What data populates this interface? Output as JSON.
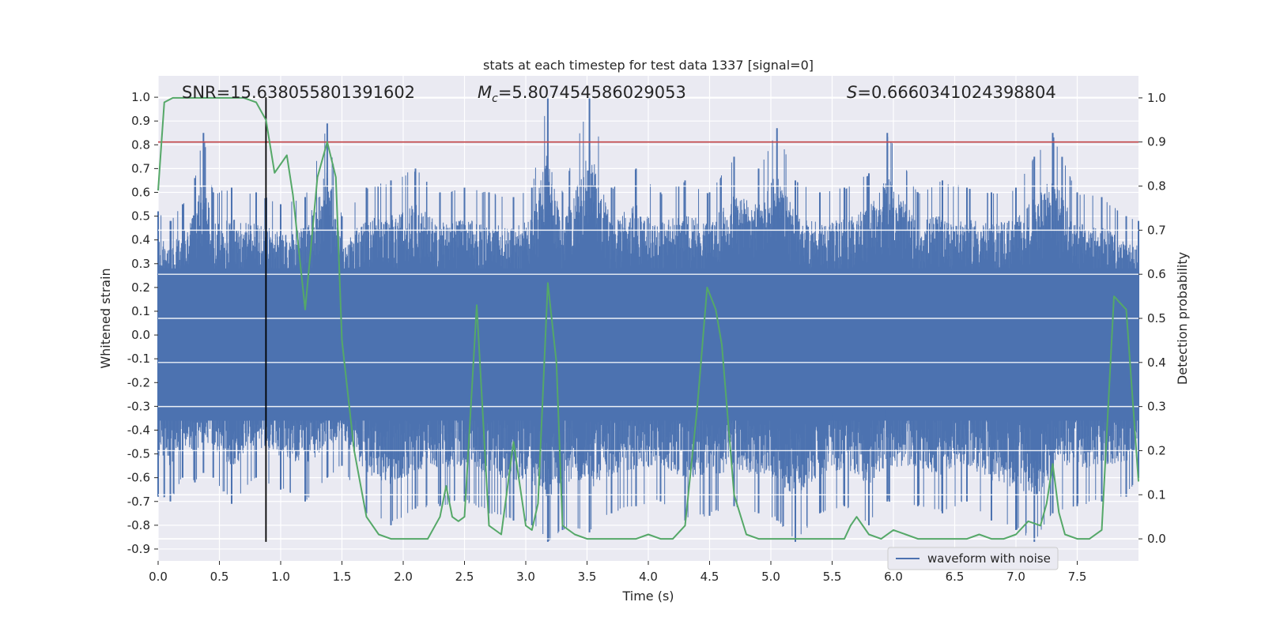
{
  "chart_data": {
    "type": "line",
    "title": "stats at each timestep for test data 1337 [signal=0]",
    "xlabel": "Time (s)",
    "ylabel_left": "Whitened strain",
    "ylabel_right": "Detection probability",
    "xlim": [
      0.0,
      8.0
    ],
    "ylim_left": [
      -0.95,
      1.09
    ],
    "ylim_right": [
      -0.05,
      1.05
    ],
    "x_ticks": [
      "0.0",
      "0.5",
      "1.0",
      "1.5",
      "2.0",
      "2.5",
      "3.0",
      "3.5",
      "4.0",
      "4.5",
      "5.0",
      "5.5",
      "6.0",
      "6.5",
      "7.0",
      "7.5"
    ],
    "y_left_ticks": [
      "-0.9",
      "-0.8",
      "-0.7",
      "-0.6",
      "-0.5",
      "-0.4",
      "-0.3",
      "-0.2",
      "-0.1",
      "0.0",
      "0.1",
      "0.2",
      "0.3",
      "0.4",
      "0.5",
      "0.6",
      "0.7",
      "0.8",
      "0.9",
      "1.0"
    ],
    "y_right_ticks": [
      "0.0",
      "0.1",
      "0.2",
      "0.3",
      "0.4",
      "0.5",
      "0.6",
      "0.7",
      "0.8",
      "0.9",
      "1.0"
    ],
    "grid": true,
    "legend_position": "lower-right",
    "annotations": {
      "snr": "SNR=15.638055801391602",
      "mc_prefix": "M",
      "mc_sub": "c",
      "mc_value": "=5.807454586029053",
      "s_prefix": "S",
      "s_value": "=0.6660341024398804"
    },
    "threshold_right": 0.9,
    "vline_x": 0.88,
    "series": [
      {
        "name": "waveform with noise",
        "axis": "left",
        "color": "#4c72b0",
        "envelope": {
          "x": [
            0.0,
            0.1,
            0.2,
            0.3,
            0.37,
            0.45,
            0.6,
            0.8,
            1.0,
            1.2,
            1.38,
            1.5,
            1.7,
            1.9,
            2.1,
            2.3,
            2.5,
            2.7,
            2.9,
            3.05,
            3.18,
            3.3,
            3.52,
            3.7,
            3.9,
            4.1,
            4.3,
            4.5,
            4.7,
            4.9,
            5.05,
            5.2,
            5.4,
            5.6,
            5.8,
            5.95,
            6.2,
            6.4,
            6.6,
            6.8,
            7.0,
            7.15,
            7.3,
            7.5,
            7.7,
            7.9,
            8.0
          ],
          "upper": [
            0.52,
            0.48,
            0.55,
            0.66,
            0.85,
            0.6,
            0.62,
            0.6,
            0.55,
            0.58,
            0.89,
            0.5,
            0.62,
            0.65,
            0.7,
            0.6,
            0.62,
            0.6,
            0.58,
            0.62,
            1.0,
            0.6,
            1.0,
            0.62,
            0.7,
            0.6,
            0.65,
            0.6,
            0.75,
            0.7,
            0.87,
            0.65,
            0.6,
            0.62,
            0.68,
            0.85,
            0.6,
            0.65,
            0.62,
            0.6,
            0.62,
            0.75,
            0.85,
            0.6,
            0.58,
            0.5,
            0.48
          ],
          "lower": [
            -0.68,
            -0.7,
            -0.6,
            -0.62,
            -0.58,
            -0.6,
            -0.71,
            -0.6,
            -0.65,
            -0.7,
            -0.6,
            -0.55,
            -0.75,
            -0.8,
            -0.73,
            -0.72,
            -0.7,
            -0.75,
            -0.78,
            -0.8,
            -0.87,
            -0.82,
            -0.83,
            -0.75,
            -0.72,
            -0.7,
            -0.78,
            -0.76,
            -0.72,
            -0.75,
            -0.78,
            -0.87,
            -0.75,
            -0.72,
            -0.8,
            -0.7,
            -0.72,
            -0.75,
            -0.7,
            -0.78,
            -0.82,
            -0.87,
            -0.75,
            -0.72,
            -0.7,
            -0.68,
            -0.6
          ]
        }
      },
      {
        "name": "",
        "axis": "right",
        "color": "#55a868",
        "x": [
          0.0,
          0.05,
          0.12,
          0.2,
          0.3,
          0.4,
          0.5,
          0.6,
          0.7,
          0.8,
          0.88,
          0.95,
          1.05,
          1.1,
          1.2,
          1.3,
          1.38,
          1.45,
          1.5,
          1.6,
          1.7,
          1.8,
          1.9,
          2.0,
          2.1,
          2.2,
          2.3,
          2.35,
          2.4,
          2.45,
          2.5,
          2.6,
          2.7,
          2.8,
          2.9,
          3.0,
          3.05,
          3.1,
          3.18,
          3.25,
          3.3,
          3.4,
          3.5,
          3.6,
          3.7,
          3.8,
          3.9,
          4.0,
          4.1,
          4.2,
          4.3,
          4.4,
          4.48,
          4.55,
          4.6,
          4.7,
          4.8,
          4.9,
          5.0,
          5.1,
          5.2,
          5.3,
          5.4,
          5.5,
          5.6,
          5.65,
          5.7,
          5.8,
          5.9,
          6.0,
          6.1,
          6.2,
          6.3,
          6.4,
          6.5,
          6.6,
          6.7,
          6.8,
          6.9,
          7.0,
          7.1,
          7.2,
          7.25,
          7.3,
          7.35,
          7.4,
          7.5,
          7.6,
          7.7,
          7.8,
          7.9,
          8.0
        ],
        "values": [
          0.79,
          0.99,
          1.0,
          1.0,
          1.0,
          1.0,
          1.0,
          1.0,
          1.0,
          0.99,
          0.95,
          0.83,
          0.87,
          0.78,
          0.52,
          0.82,
          0.9,
          0.82,
          0.45,
          0.2,
          0.05,
          0.01,
          0.0,
          0.0,
          0.0,
          0.0,
          0.05,
          0.12,
          0.05,
          0.04,
          0.05,
          0.53,
          0.03,
          0.01,
          0.22,
          0.03,
          0.02,
          0.08,
          0.58,
          0.4,
          0.03,
          0.01,
          0.0,
          0.0,
          0.0,
          0.0,
          0.0,
          0.01,
          0.0,
          0.0,
          0.03,
          0.3,
          0.57,
          0.52,
          0.44,
          0.1,
          0.01,
          0.0,
          0.0,
          0.0,
          0.0,
          0.0,
          0.0,
          0.0,
          0.0,
          0.03,
          0.05,
          0.01,
          0.0,
          0.02,
          0.01,
          0.0,
          0.0,
          0.0,
          0.0,
          0.0,
          0.01,
          0.0,
          0.0,
          0.01,
          0.04,
          0.03,
          0.08,
          0.17,
          0.06,
          0.01,
          0.0,
          0.0,
          0.02,
          0.55,
          0.52,
          0.13
        ]
      }
    ],
    "colors": {
      "axes_bg": "#eaeaf2",
      "grid": "#ffffff",
      "threshold": "#c44e52",
      "vline": "#000000"
    }
  }
}
